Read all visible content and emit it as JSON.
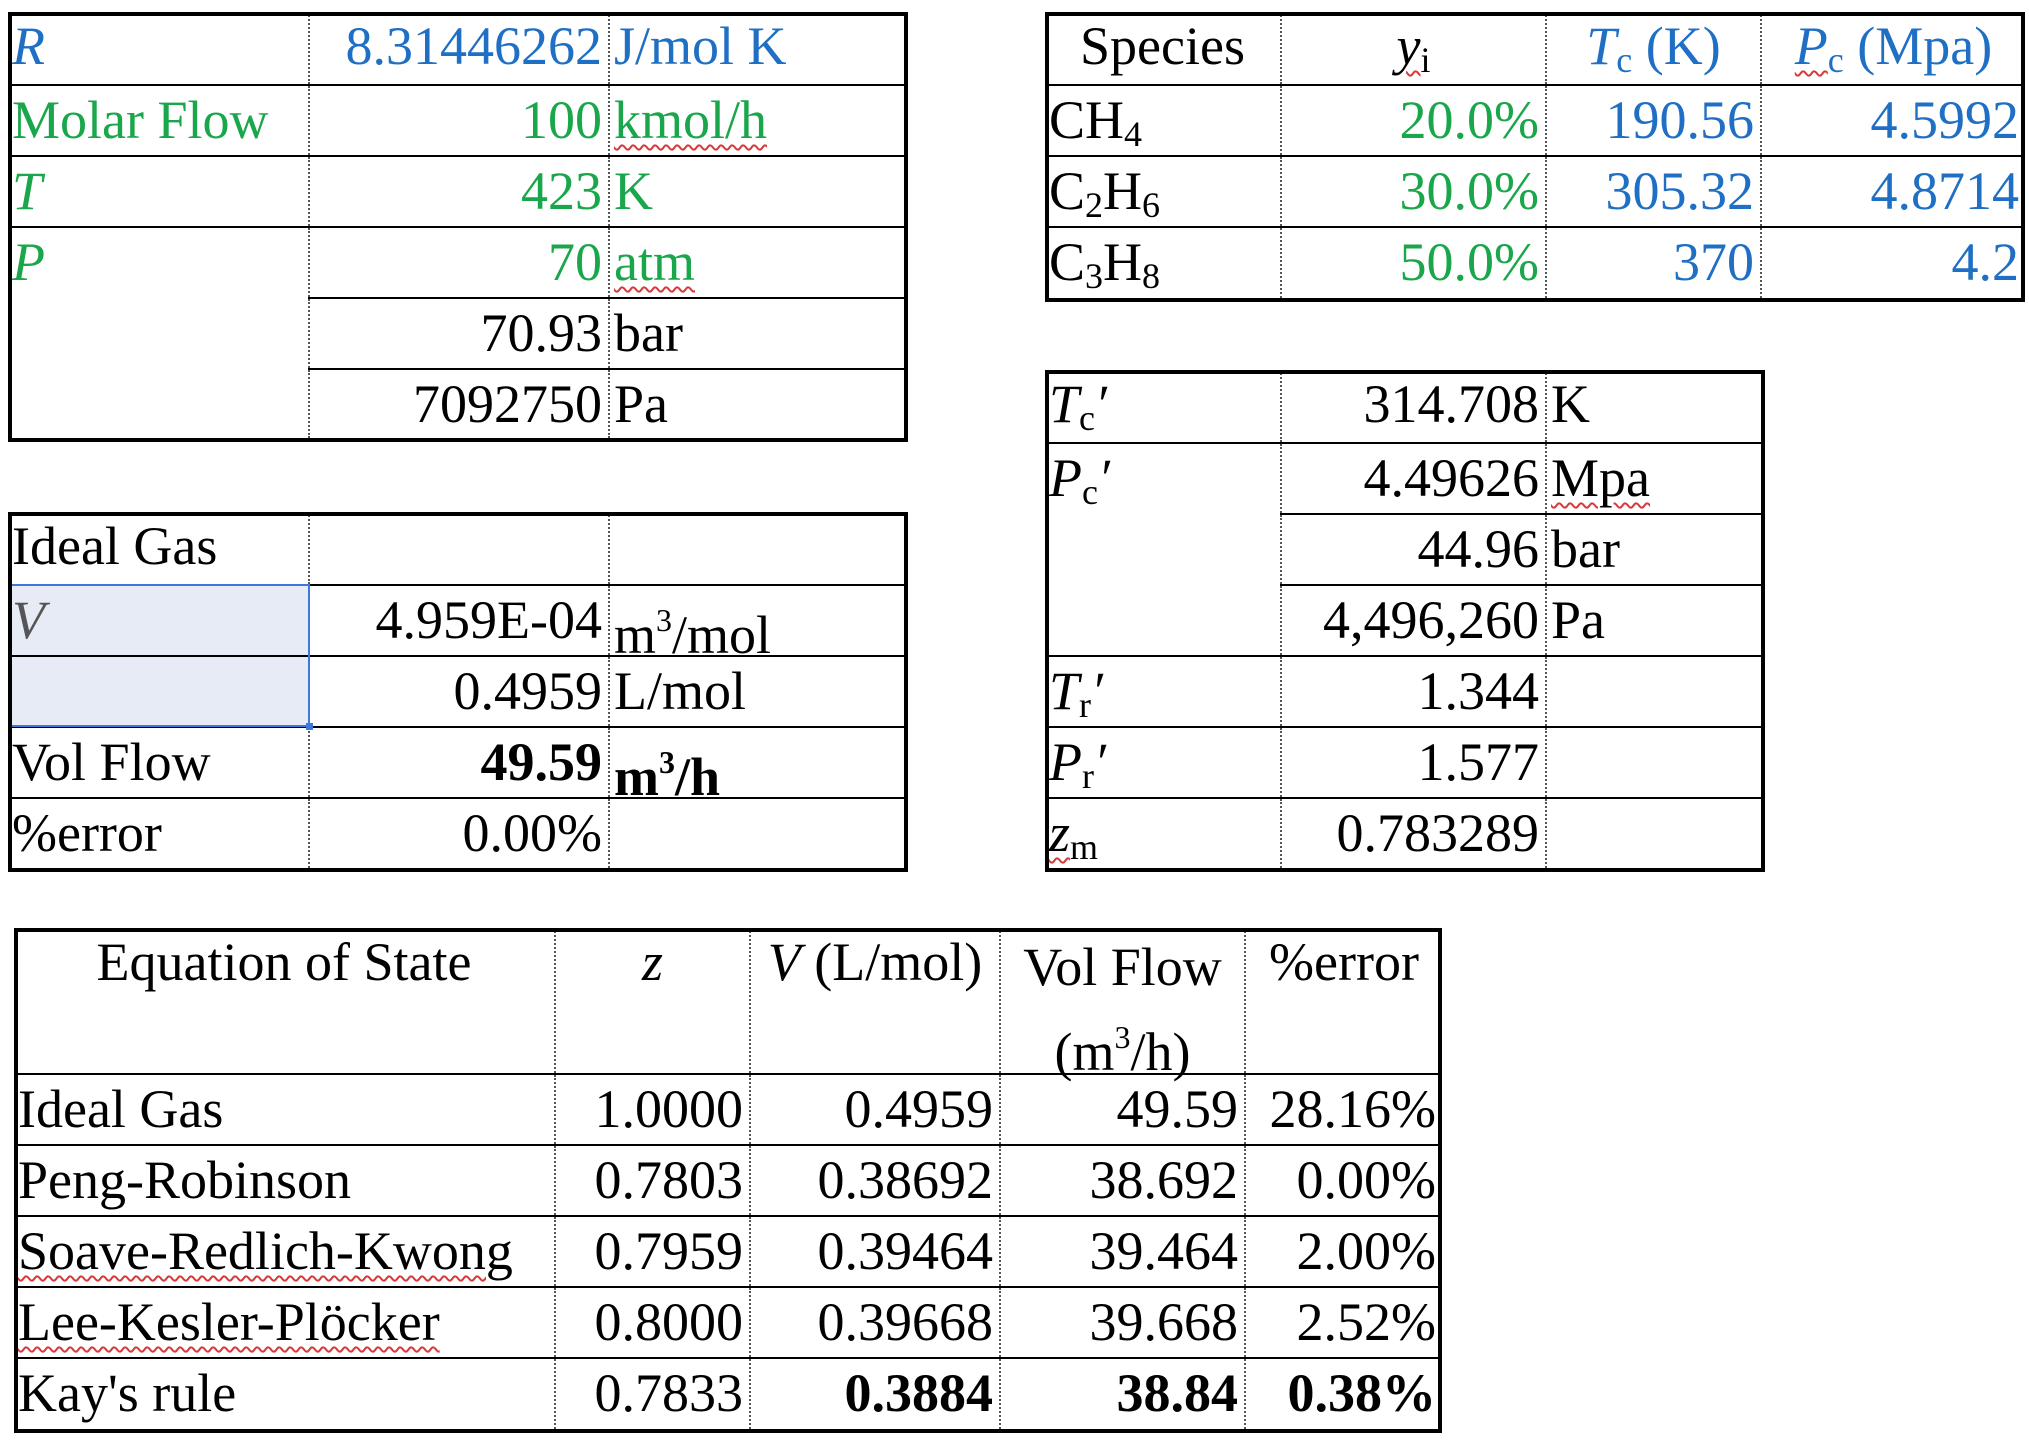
{
  "sheet": {
    "const": [
      {
        "label": "R",
        "value": "8.31446262",
        "unit": "J/mol K"
      },
      {
        "label": "Molar Flow",
        "value": "100",
        "unit": "kmol/h"
      },
      {
        "label": "T",
        "value": "423",
        "unit": "K"
      },
      {
        "label": "P",
        "value": "70",
        "unit": "atm"
      },
      {
        "label": "",
        "value": "70.93",
        "unit": "bar"
      },
      {
        "label": "",
        "value": "7092750",
        "unit": "Pa"
      }
    ],
    "species": {
      "headers": {
        "species": "Species",
        "y": "y",
        "y_sub": "i",
        "tc": "T",
        "tc_sub": "c",
        "tc_unit": " (K)",
        "pc": "P",
        "pc_sub": "c",
        "pc_unit": " (Mpa)"
      },
      "rows": [
        {
          "a": "CH",
          "a_sub": "4",
          "b": "",
          "b_sub": "",
          "c": "",
          "y": "20.0%",
          "tc": "190.56",
          "pc": "4.5992"
        },
        {
          "a": "C",
          "a_sub": "2",
          "b": "H",
          "b_sub": "6",
          "c": "",
          "y": "30.0%",
          "tc": "305.32",
          "pc": "4.8714"
        },
        {
          "a": "C",
          "a_sub": "3",
          "b": "H",
          "b_sub": "8",
          "c": "",
          "y": "50.0%",
          "tc": "370",
          "pc": "4.2"
        }
      ]
    },
    "ideal": {
      "title": "Ideal Gas",
      "v_label": "V",
      "v_m3": "4.959E-04",
      "v_m3_unit": "m",
      "v_m3_unit_sup": "3",
      "v_m3_unit_rest": "/mol",
      "v_l": "0.4959",
      "v_l_unit": "L/mol",
      "flow_label": "Vol Flow",
      "flow": "49.59",
      "flow_unit": "m",
      "flow_unit_sup": "3",
      "flow_unit_rest": "/h",
      "err_label": "%error",
      "err": "0.00%"
    },
    "pseudo": {
      "tc_label": "T",
      "tc_sub": "c",
      "prime": "′",
      "tc": "314.708",
      "tc_unit": "K",
      "pc_label": "P",
      "pc_sub": "c",
      "pc_mpa": "4.49626",
      "pc_mpa_unit": "Mpa",
      "pc_bar": "44.96",
      "pc_bar_unit": "bar",
      "pc_pa": "4,496,260",
      "pc_pa_unit": "Pa",
      "tr_label": "T",
      "tr_sub": "r",
      "tr": "1.344",
      "pr_label": "P",
      "pr_sub": "r",
      "pr": "1.577",
      "zm_label": "z",
      "zm_sub": "m",
      "zm": "0.783289"
    },
    "eos": {
      "headers": {
        "name": "Equation of State",
        "z": "z",
        "v": "V",
        "v_rest": " (L/mol)",
        "flow1": "Vol Flow",
        "flow2": "(m",
        "flow2_sup": "3",
        "flow2_rest": "/h)",
        "err": "%error"
      },
      "rows": [
        {
          "name": "Ideal Gas",
          "z": "1.0000",
          "v": "0.4959",
          "flow": "49.59",
          "err": "28.16%"
        },
        {
          "name": "Peng-Robinson",
          "z": "0.7803",
          "v": "0.38692",
          "flow": "38.692",
          "err": "0.00%"
        },
        {
          "name": "Soave-Redlich-Kwong",
          "z": "0.7959",
          "v": "0.39464",
          "flow": "39.464",
          "err": "2.00%"
        },
        {
          "name": "Lee-Kesler-Plöcker",
          "z": "0.8000",
          "v": "0.39668",
          "flow": "39.668",
          "err": "2.52%"
        },
        {
          "name": "Kay's rule",
          "z": "0.7833",
          "v": "0.3884",
          "flow": "38.84",
          "err": "0.38%"
        }
      ]
    }
  }
}
